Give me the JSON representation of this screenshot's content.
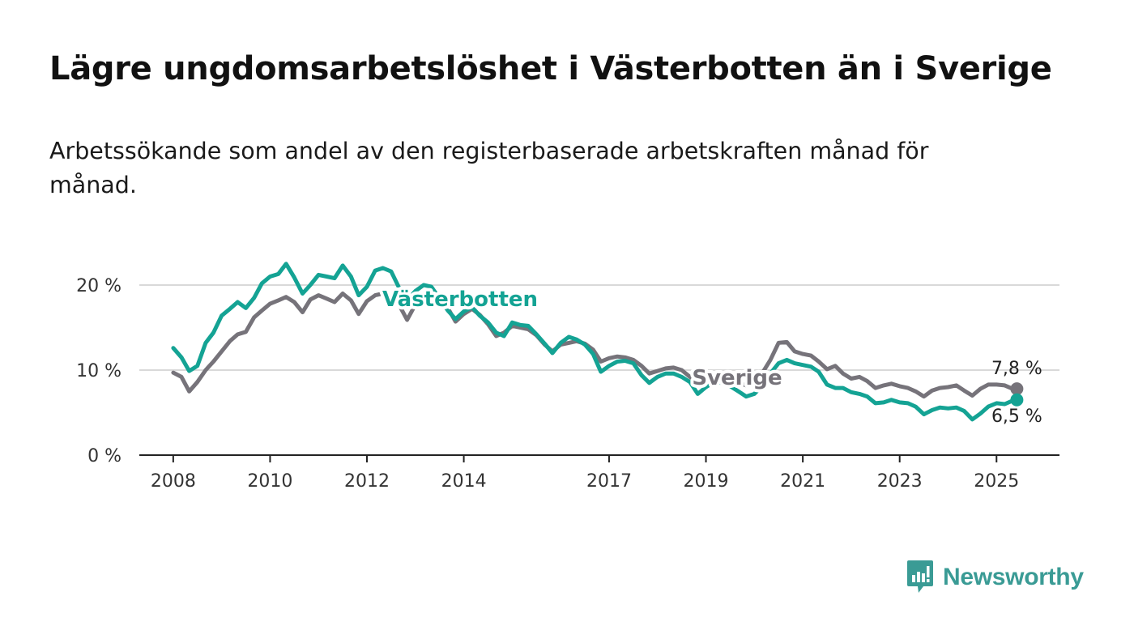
{
  "title": "Lägre ungdomsarbetslöshet i Västerbotten än i Sverige",
  "subtitle": "Arbetssökande som andel av den registerbaserade arbetskraften månad för månad.",
  "brand": {
    "name": "Newsworthy",
    "icon": "newsworthy-logo-icon",
    "color": "#3a9b95"
  },
  "chart_data": {
    "type": "line",
    "title": "Lägre ungdomsarbetslöshet i Västerbotten än i Sverige",
    "xlabel": "",
    "ylabel": "",
    "x_range": [
      2007.3,
      2026.3
    ],
    "ylim": [
      0,
      20
    ],
    "y_ticks": [
      {
        "value": 0,
        "label": "0 %"
      },
      {
        "value": 10,
        "label": "10 %"
      },
      {
        "value": 20,
        "label": "20 %"
      }
    ],
    "x_ticks": [
      {
        "value": 2008,
        "label": "2008"
      },
      {
        "value": 2010,
        "label": "2010"
      },
      {
        "value": 2012,
        "label": "2012"
      },
      {
        "value": 2014,
        "label": "2014"
      },
      {
        "value": 2017,
        "label": "2017"
      },
      {
        "value": 2019,
        "label": "2019"
      },
      {
        "value": 2021,
        "label": "2021"
      },
      {
        "value": 2023,
        "label": "2023"
      },
      {
        "value": 2025,
        "label": "2025"
      }
    ],
    "grid": true,
    "series": [
      {
        "name": "Sverige",
        "color": "#76737a",
        "end_label": "7,8 %",
        "points": [
          [
            2008.0,
            9.7
          ],
          [
            2008.17,
            9.2
          ],
          [
            2008.33,
            7.5
          ],
          [
            2008.5,
            8.6
          ],
          [
            2008.67,
            10.0
          ],
          [
            2008.83,
            11.0
          ],
          [
            2009.0,
            12.2
          ],
          [
            2009.17,
            13.4
          ],
          [
            2009.33,
            14.2
          ],
          [
            2009.5,
            14.5
          ],
          [
            2009.67,
            16.2
          ],
          [
            2009.83,
            17.0
          ],
          [
            2010.0,
            17.8
          ],
          [
            2010.17,
            18.2
          ],
          [
            2010.33,
            18.6
          ],
          [
            2010.5,
            18.0
          ],
          [
            2010.67,
            16.8
          ],
          [
            2010.83,
            18.3
          ],
          [
            2011.0,
            18.8
          ],
          [
            2011.17,
            18.4
          ],
          [
            2011.33,
            18.0
          ],
          [
            2011.5,
            19.0
          ],
          [
            2011.67,
            18.2
          ],
          [
            2011.83,
            16.6
          ],
          [
            2012.0,
            18.1
          ],
          [
            2012.17,
            18.8
          ],
          [
            2012.33,
            19.0
          ],
          [
            2012.5,
            18.0
          ],
          [
            2012.67,
            17.6
          ],
          [
            2012.83,
            15.9
          ],
          [
            2013.0,
            17.7
          ],
          [
            2013.17,
            18.6
          ],
          [
            2013.33,
            19.0
          ],
          [
            2013.5,
            18.4
          ],
          [
            2013.67,
            17.3
          ],
          [
            2013.83,
            15.7
          ],
          [
            2014.0,
            16.6
          ],
          [
            2014.17,
            17.2
          ],
          [
            2014.33,
            16.5
          ],
          [
            2014.5,
            15.4
          ],
          [
            2014.67,
            14.0
          ],
          [
            2014.83,
            14.4
          ],
          [
            2015.0,
            15.2
          ],
          [
            2015.17,
            15.0
          ],
          [
            2015.33,
            14.8
          ],
          [
            2015.5,
            14.1
          ],
          [
            2015.67,
            13.0
          ],
          [
            2015.83,
            12.2
          ],
          [
            2016.0,
            13.0
          ],
          [
            2016.17,
            13.2
          ],
          [
            2016.33,
            13.4
          ],
          [
            2016.5,
            13.1
          ],
          [
            2016.67,
            12.4
          ],
          [
            2016.83,
            11.0
          ],
          [
            2017.0,
            11.4
          ],
          [
            2017.17,
            11.6
          ],
          [
            2017.33,
            11.5
          ],
          [
            2017.5,
            11.2
          ],
          [
            2017.67,
            10.5
          ],
          [
            2017.83,
            9.6
          ],
          [
            2018.0,
            9.9
          ],
          [
            2018.17,
            10.2
          ],
          [
            2018.33,
            10.3
          ],
          [
            2018.5,
            10.0
          ],
          [
            2018.67,
            9.2
          ],
          [
            2018.83,
            8.4
          ],
          [
            2019.0,
            8.8
          ],
          [
            2019.17,
            9.2
          ],
          [
            2019.33,
            9.3
          ],
          [
            2019.5,
            9.0
          ],
          [
            2019.67,
            8.5
          ],
          [
            2019.83,
            8.2
          ],
          [
            2020.0,
            8.9
          ],
          [
            2020.17,
            9.7
          ],
          [
            2020.33,
            11.2
          ],
          [
            2020.5,
            13.2
          ],
          [
            2020.67,
            13.3
          ],
          [
            2020.83,
            12.2
          ],
          [
            2021.0,
            11.9
          ],
          [
            2021.17,
            11.7
          ],
          [
            2021.33,
            11.0
          ],
          [
            2021.5,
            10.1
          ],
          [
            2021.67,
            10.5
          ],
          [
            2021.83,
            9.6
          ],
          [
            2022.0,
            9.0
          ],
          [
            2022.17,
            9.2
          ],
          [
            2022.33,
            8.7
          ],
          [
            2022.5,
            7.9
          ],
          [
            2022.67,
            8.2
          ],
          [
            2022.83,
            8.4
          ],
          [
            2023.0,
            8.1
          ],
          [
            2023.17,
            7.9
          ],
          [
            2023.33,
            7.5
          ],
          [
            2023.5,
            6.9
          ],
          [
            2023.67,
            7.6
          ],
          [
            2023.83,
            7.9
          ],
          [
            2024.0,
            8.0
          ],
          [
            2024.17,
            8.2
          ],
          [
            2024.33,
            7.6
          ],
          [
            2024.5,
            7.0
          ],
          [
            2024.67,
            7.8
          ],
          [
            2024.83,
            8.3
          ],
          [
            2025.0,
            8.3
          ],
          [
            2025.17,
            8.2
          ],
          [
            2025.33,
            7.8
          ],
          [
            2025.42,
            7.8
          ]
        ]
      },
      {
        "name": "Västerbotten",
        "color": "#14a394",
        "end_label": "6,5 %",
        "points": [
          [
            2008.0,
            12.6
          ],
          [
            2008.17,
            11.5
          ],
          [
            2008.33,
            9.9
          ],
          [
            2008.5,
            10.5
          ],
          [
            2008.67,
            13.2
          ],
          [
            2008.83,
            14.4
          ],
          [
            2009.0,
            16.4
          ],
          [
            2009.17,
            17.2
          ],
          [
            2009.33,
            18.0
          ],
          [
            2009.5,
            17.3
          ],
          [
            2009.67,
            18.5
          ],
          [
            2009.83,
            20.2
          ],
          [
            2010.0,
            21.0
          ],
          [
            2010.17,
            21.3
          ],
          [
            2010.33,
            22.5
          ],
          [
            2010.5,
            20.9
          ],
          [
            2010.67,
            19.0
          ],
          [
            2010.83,
            20.0
          ],
          [
            2011.0,
            21.2
          ],
          [
            2011.17,
            21.0
          ],
          [
            2011.33,
            20.8
          ],
          [
            2011.5,
            22.3
          ],
          [
            2011.67,
            21.0
          ],
          [
            2011.83,
            18.8
          ],
          [
            2012.0,
            19.8
          ],
          [
            2012.17,
            21.7
          ],
          [
            2012.33,
            22.0
          ],
          [
            2012.5,
            21.6
          ],
          [
            2012.67,
            19.6
          ],
          [
            2012.83,
            18.2
          ],
          [
            2013.0,
            19.3
          ],
          [
            2013.17,
            20.0
          ],
          [
            2013.33,
            19.8
          ],
          [
            2013.5,
            18.4
          ],
          [
            2013.67,
            17.0
          ],
          [
            2013.83,
            16.0
          ],
          [
            2014.0,
            16.9
          ],
          [
            2014.17,
            17.4
          ],
          [
            2014.33,
            16.4
          ],
          [
            2014.5,
            15.6
          ],
          [
            2014.67,
            14.4
          ],
          [
            2014.83,
            14.0
          ],
          [
            2015.0,
            15.6
          ],
          [
            2015.17,
            15.3
          ],
          [
            2015.33,
            15.2
          ],
          [
            2015.5,
            14.2
          ],
          [
            2015.67,
            13.1
          ],
          [
            2015.83,
            12.0
          ],
          [
            2016.0,
            13.2
          ],
          [
            2016.17,
            13.9
          ],
          [
            2016.33,
            13.6
          ],
          [
            2016.5,
            13.0
          ],
          [
            2016.67,
            11.9
          ],
          [
            2016.83,
            9.8
          ],
          [
            2017.0,
            10.5
          ],
          [
            2017.17,
            11.0
          ],
          [
            2017.33,
            11.1
          ],
          [
            2017.5,
            10.8
          ],
          [
            2017.67,
            9.4
          ],
          [
            2017.83,
            8.5
          ],
          [
            2018.0,
            9.2
          ],
          [
            2018.17,
            9.6
          ],
          [
            2018.33,
            9.6
          ],
          [
            2018.5,
            9.2
          ],
          [
            2018.67,
            8.6
          ],
          [
            2018.83,
            7.2
          ],
          [
            2019.0,
            8.0
          ],
          [
            2019.17,
            8.6
          ],
          [
            2019.33,
            8.5
          ],
          [
            2019.5,
            8.1
          ],
          [
            2019.67,
            7.5
          ],
          [
            2019.83,
            6.9
          ],
          [
            2020.0,
            7.2
          ],
          [
            2020.17,
            8.2
          ],
          [
            2020.33,
            9.6
          ],
          [
            2020.5,
            10.8
          ],
          [
            2020.67,
            11.2
          ],
          [
            2020.83,
            10.8
          ],
          [
            2021.0,
            10.6
          ],
          [
            2021.17,
            10.4
          ],
          [
            2021.33,
            9.8
          ],
          [
            2021.5,
            8.3
          ],
          [
            2021.67,
            7.9
          ],
          [
            2021.83,
            7.9
          ],
          [
            2022.0,
            7.4
          ],
          [
            2022.17,
            7.2
          ],
          [
            2022.33,
            6.9
          ],
          [
            2022.5,
            6.1
          ],
          [
            2022.67,
            6.2
          ],
          [
            2022.83,
            6.5
          ],
          [
            2023.0,
            6.2
          ],
          [
            2023.17,
            6.1
          ],
          [
            2023.33,
            5.7
          ],
          [
            2023.5,
            4.8
          ],
          [
            2023.67,
            5.3
          ],
          [
            2023.83,
            5.6
          ],
          [
            2024.0,
            5.5
          ],
          [
            2024.17,
            5.6
          ],
          [
            2024.33,
            5.2
          ],
          [
            2024.5,
            4.2
          ],
          [
            2024.67,
            4.9
          ],
          [
            2024.83,
            5.7
          ],
          [
            2025.0,
            6.1
          ],
          [
            2025.17,
            6.0
          ],
          [
            2025.33,
            6.4
          ],
          [
            2025.42,
            6.5
          ]
        ]
      }
    ]
  }
}
